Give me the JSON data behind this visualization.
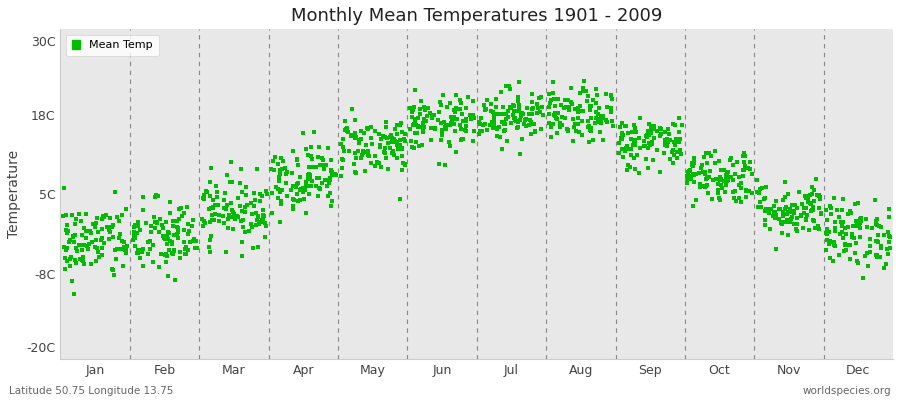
{
  "title": "Monthly Mean Temperatures 1901 - 2009",
  "ylabel": "Temperature",
  "xlabel_bottom_left": "Latitude 50.75 Longitude 13.75",
  "xlabel_bottom_right": "worldspecies.org",
  "legend_label": "Mean Temp",
  "marker_color": "#00BB00",
  "plot_bg_color": "#E8E8E8",
  "outer_bg_color": "#FFFFFF",
  "yticks": [
    -20,
    -8,
    5,
    18,
    30
  ],
  "ytick_labels": [
    "-20C",
    "-8C",
    "5C",
    "18C",
    "30C"
  ],
  "ylim": [
    -22,
    32
  ],
  "months": [
    "Jan",
    "Feb",
    "Mar",
    "Apr",
    "May",
    "Jun",
    "Jul",
    "Aug",
    "Sep",
    "Oct",
    "Nov",
    "Dec"
  ],
  "num_years": 109,
  "monthly_mean_temps": [
    -2.8,
    -2.2,
    2.5,
    7.8,
    13.0,
    16.5,
    18.0,
    17.8,
    13.5,
    8.0,
    2.5,
    -1.5
  ],
  "monthly_std_temps": [
    3.2,
    3.2,
    2.8,
    2.8,
    2.5,
    2.3,
    2.2,
    2.2,
    2.2,
    2.3,
    2.3,
    2.8
  ],
  "seed": 42
}
